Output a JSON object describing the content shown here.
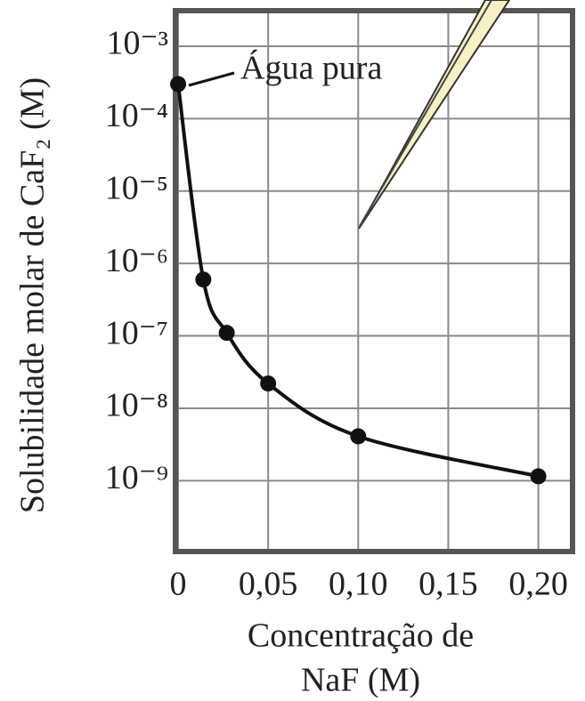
{
  "chart_data": {
    "type": "line",
    "ylabel": "Solubilidade molar de CaF₂ (M)",
    "xlabel": [
      "Concentração de",
      "NaF (M)"
    ],
    "annotation": "Água pura",
    "x": [
      0,
      0.014,
      0.027,
      0.05,
      0.1,
      0.2
    ],
    "series": [
      {
        "color": "#111111",
        "values": [
          0.0003,
          6e-07,
          1.1e-07,
          2.2e-08,
          4.1e-09,
          1.15e-09
        ]
      }
    ],
    "xlim": [
      -0.0015,
      0.219
    ],
    "xticks": [
      0,
      {
        "value": 0.05,
        "label": "0,05"
      },
      {
        "value": 0.1,
        "label": "0,10"
      },
      {
        "value": 0.15,
        "label": "0,15"
      },
      {
        "value": 0.2,
        "label": "0,20"
      }
    ],
    "ylim": [
      1.05e-10,
      0.0031
    ],
    "yscale": "log",
    "yticks": [
      {
        "value": 0.001,
        "label": "10⁻³"
      },
      {
        "value": 0.0001,
        "label": "10⁻⁴"
      },
      {
        "value": 1e-05,
        "label": "10⁻⁵"
      },
      {
        "value": 1e-06,
        "label": "10⁻⁶"
      },
      {
        "value": 1e-07,
        "label": "10⁻⁷"
      },
      {
        "value": 1e-08,
        "label": "10⁻⁸"
      },
      {
        "value": 1e-09,
        "label": "10⁻⁹"
      }
    ],
    "grid": true
  }
}
